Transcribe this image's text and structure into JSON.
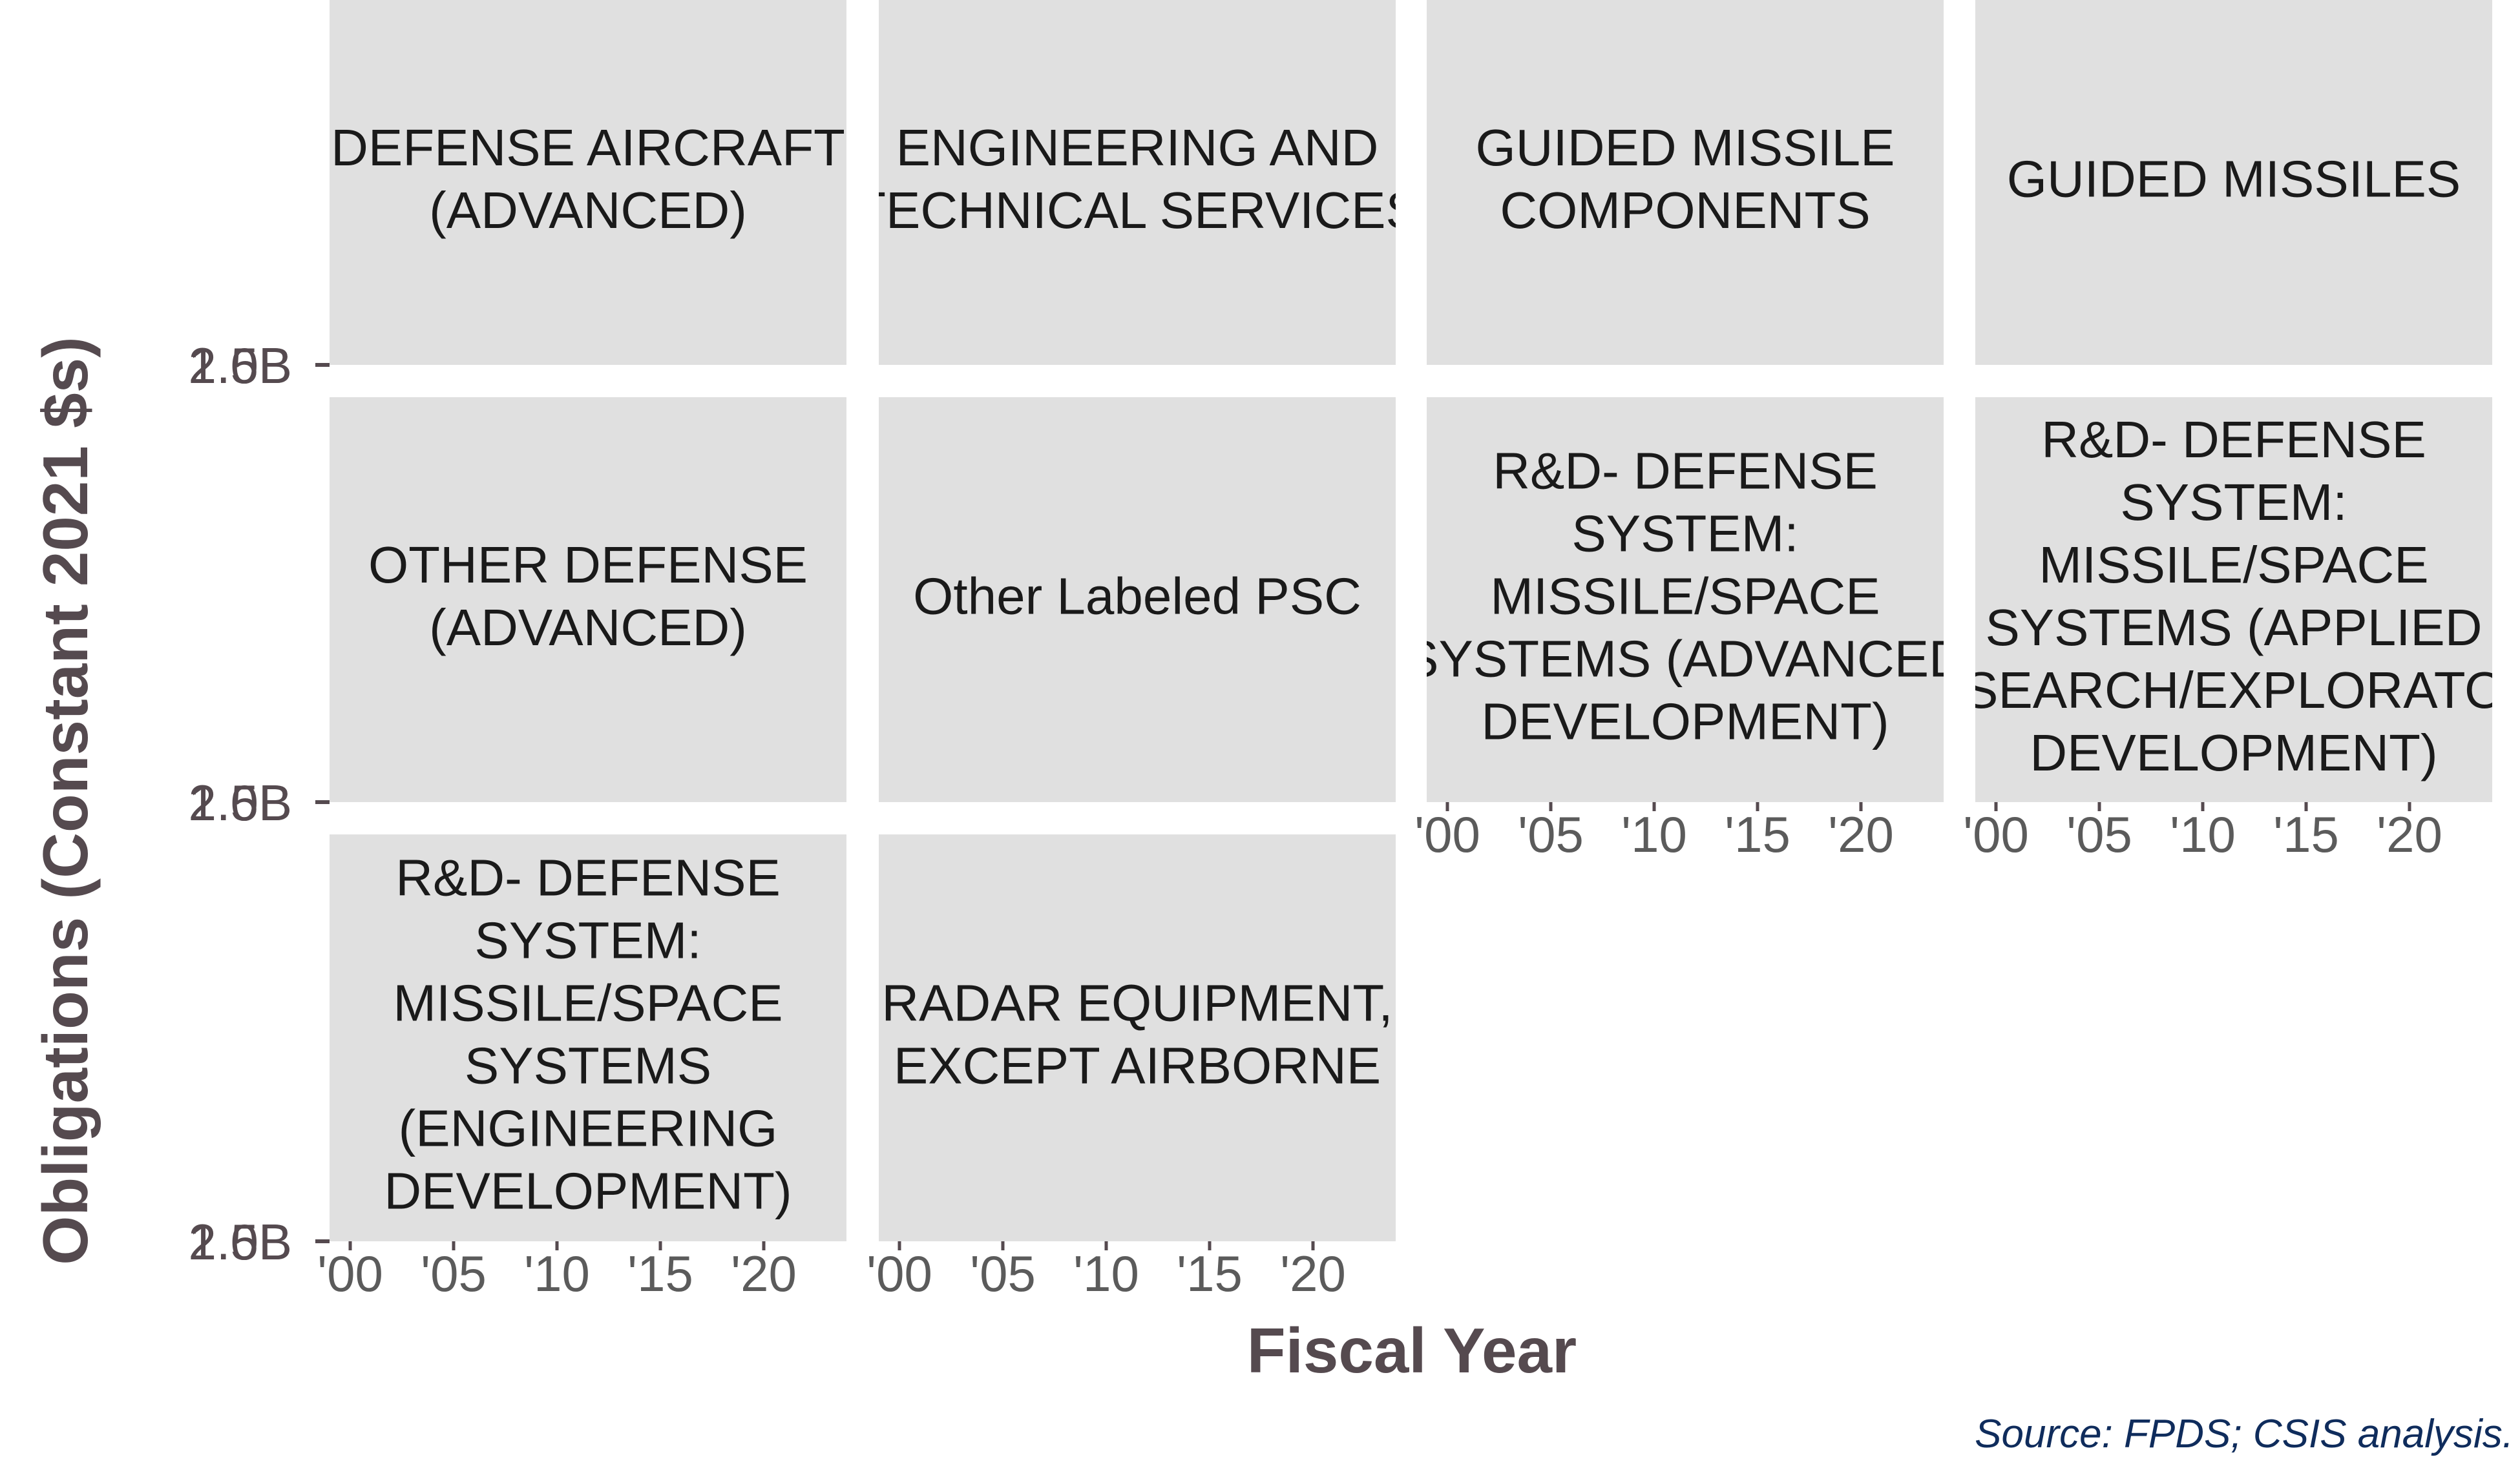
{
  "chart_data": {
    "type": "bar",
    "layout": "facet_wrap",
    "xlabel": "Fiscal Year",
    "ylabel": "Obligations (Constant 2021 $s)",
    "x_ticks": [
      "'00",
      "'05",
      "'10",
      "'15",
      "'20"
    ],
    "xlim": [
      1999,
      2024
    ],
    "y_tick_labels_overplotted": [
      "1.5B",
      "2.0B"
    ],
    "grid": false,
    "legend": "none",
    "caption": "Source: FPDS; CSIS analysis.",
    "panels": [
      {
        "label": "DEFENSE AIRCRAFT\n(ADVANCED)",
        "row": 0,
        "col": 0,
        "show_x_ticks": false
      },
      {
        "label": "ENGINEERING AND\nTECHNICAL SERVICES",
        "row": 0,
        "col": 1,
        "show_x_ticks": false
      },
      {
        "label": "GUIDED MISSILE\nCOMPONENTS",
        "row": 0,
        "col": 2,
        "show_x_ticks": false
      },
      {
        "label": "GUIDED MISSILES",
        "row": 0,
        "col": 3,
        "show_x_ticks": false
      },
      {
        "label": "OTHER DEFENSE\n(ADVANCED)",
        "row": 1,
        "col": 0,
        "show_x_ticks": false
      },
      {
        "label": "Other Labeled PSC",
        "row": 1,
        "col": 1,
        "show_x_ticks": false
      },
      {
        "label": "R&D- DEFENSE\nSYSTEM:\nMISSILE/SPACE\nSYSTEMS (ADVANCED\nDEVELOPMENT)",
        "row": 1,
        "col": 2,
        "show_x_ticks": true
      },
      {
        "label": "R&D- DEFENSE\nSYSTEM:\nMISSILE/SPACE\nSYSTEMS (APPLIED\nRESEARCH/EXPLORATORY\nDEVELOPMENT)",
        "row": 1,
        "col": 3,
        "show_x_ticks": true
      },
      {
        "label": "R&D- DEFENSE\nSYSTEM:\nMISSILE/SPACE\nSYSTEMS\n(ENGINEERING\nDEVELOPMENT)",
        "row": 2,
        "col": 0,
        "show_x_ticks": true
      },
      {
        "label": "RADAR EQUIPMENT,\nEXCEPT AIRBORNE",
        "row": 2,
        "col": 1,
        "show_x_ticks": true
      }
    ]
  }
}
